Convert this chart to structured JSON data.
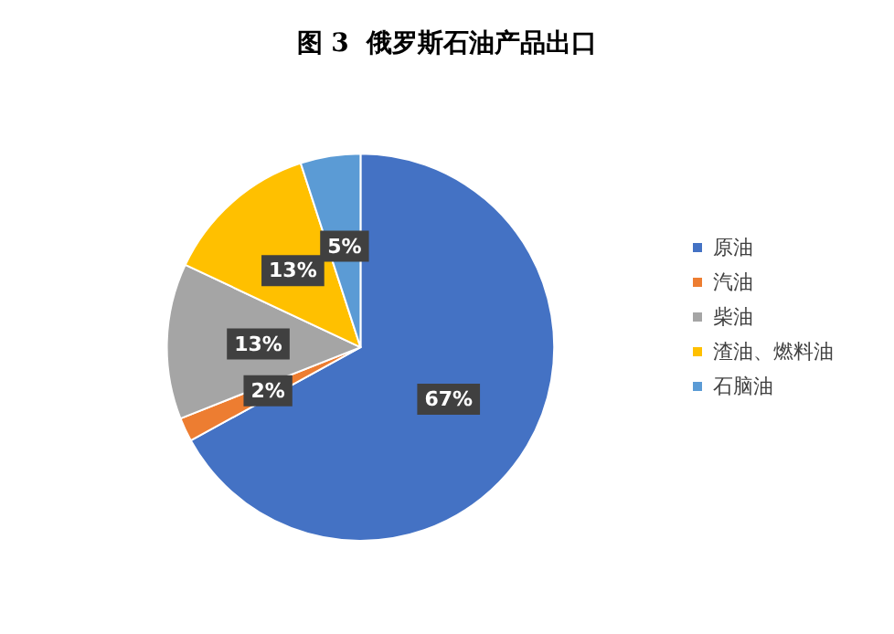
{
  "chart_data": {
    "type": "pie",
    "title": "图 3  俄罗斯石油产品出口",
    "categories": [
      "原油",
      "汽油",
      "柴油",
      "渣油、燃料油",
      "石脑油"
    ],
    "values": [
      67,
      2,
      13,
      13,
      5
    ],
    "value_labels": [
      "67%",
      "2%",
      "13%",
      "13%",
      "5%"
    ],
    "colors": [
      "#4472c4",
      "#ed7d31",
      "#a5a5a5",
      "#ffc000",
      "#5b9bd5"
    ],
    "legend": "right"
  }
}
